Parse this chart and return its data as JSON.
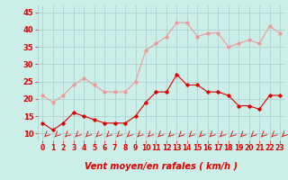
{
  "x": [
    0,
    1,
    2,
    3,
    4,
    5,
    6,
    7,
    8,
    9,
    10,
    11,
    12,
    13,
    14,
    15,
    16,
    17,
    18,
    19,
    20,
    21,
    22,
    23
  ],
  "wind_avg": [
    13,
    11,
    13,
    16,
    15,
    14,
    13,
    13,
    13,
    15,
    19,
    22,
    22,
    27,
    24,
    24,
    22,
    22,
    21,
    18,
    18,
    17,
    21,
    21
  ],
  "wind_gust": [
    21,
    19,
    21,
    24,
    26,
    24,
    22,
    22,
    22,
    25,
    34,
    36,
    38,
    42,
    42,
    38,
    39,
    39,
    35,
    36,
    37,
    36,
    41,
    39
  ],
  "avg_color": "#dd0000",
  "gust_color": "#ee9999",
  "bg_color": "#cceee8",
  "grid_color": "#aacccc",
  "xlabel": "Vent moyen/en rafales ( km/h )",
  "ylim": [
    8,
    47
  ],
  "yticks": [
    10,
    15,
    20,
    25,
    30,
    35,
    40,
    45
  ],
  "xlim": [
    -0.5,
    23.5
  ],
  "xlabel_fontsize": 7,
  "tick_fontsize": 6
}
